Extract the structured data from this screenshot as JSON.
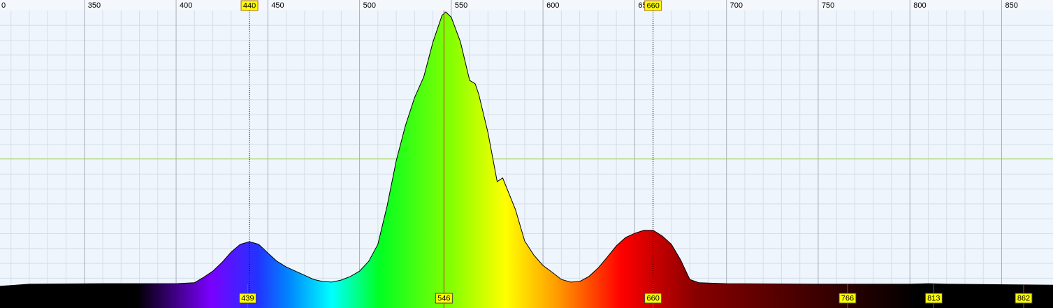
{
  "chart_data": {
    "type": "area",
    "x": [
      304,
      320,
      360,
      380,
      400,
      410,
      415,
      420,
      425,
      430,
      435,
      440,
      445,
      450,
      455,
      460,
      465,
      470,
      475,
      480,
      485,
      490,
      495,
      500,
      505,
      510,
      515,
      520,
      525,
      530,
      535,
      540,
      545,
      547,
      550,
      555,
      560,
      563,
      565,
      570,
      575,
      578,
      585,
      590,
      595,
      600,
      605,
      610,
      615,
      620,
      625,
      630,
      635,
      640,
      645,
      650,
      655,
      660,
      665,
      670,
      675,
      680,
      685,
      700,
      750,
      800,
      810,
      820,
      878
    ],
    "values": [
      7.3,
      8,
      8.2,
      8.2,
      8.2,
      8.5,
      10.3,
      12.4,
      15.3,
      18.8,
      21.4,
      22.3,
      21.4,
      18.5,
      15.7,
      13.8,
      12.4,
      11,
      9.6,
      8.9,
      8.7,
      9.4,
      10.6,
      12.4,
      15.7,
      21.4,
      34.3,
      49.5,
      61.3,
      70.7,
      77.7,
      89.4,
      98.4,
      99.5,
      97.7,
      89.4,
      76.5,
      75.4,
      71.8,
      58.9,
      42.5,
      43.7,
      33.1,
      22.5,
      17.8,
      14.3,
      12,
      9.6,
      8.7,
      8.9,
      10.6,
      13.4,
      17.1,
      20.9,
      23.7,
      25.1,
      26.1,
      26.1,
      24.2,
      21.4,
      16.2,
      9.6,
      8.5,
      8.2,
      8,
      8,
      8.2,
      8,
      7.7
    ],
    "xlim": [
      304,
      878
    ],
    "ylim": [
      0,
      100
    ],
    "xticks": [
      {
        "value": 300,
        "label": "0"
      },
      350,
      400,
      450,
      500,
      550,
      600,
      650,
      700,
      750,
      800,
      850
    ],
    "cursors": [
      440,
      660
    ],
    "peaks": [
      439,
      546,
      660,
      766,
      813,
      862
    ]
  }
}
